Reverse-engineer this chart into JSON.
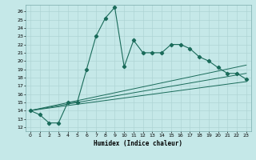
{
  "xlabel": "Humidex (Indice chaleur)",
  "bg_color": "#c5e8e8",
  "line_color": "#1a6b5a",
  "grid_color": "#afd4d4",
  "xlim": [
    -0.5,
    23.5
  ],
  "ylim": [
    11.5,
    26.8
  ],
  "xticks": [
    0,
    1,
    2,
    3,
    4,
    5,
    6,
    7,
    8,
    9,
    10,
    11,
    12,
    13,
    14,
    15,
    16,
    17,
    18,
    19,
    20,
    21,
    22,
    23
  ],
  "yticks": [
    12,
    13,
    14,
    15,
    16,
    17,
    18,
    19,
    20,
    21,
    22,
    23,
    24,
    25,
    26
  ],
  "series1_x": [
    0,
    1,
    2,
    3,
    4,
    5,
    6,
    7,
    8,
    9,
    10,
    11,
    12,
    13,
    14,
    15,
    16,
    17,
    18,
    19,
    20,
    21,
    22,
    23
  ],
  "series1_y": [
    14,
    13.5,
    12.5,
    12.5,
    15,
    15,
    19.0,
    23.0,
    25.2,
    26.5,
    19.3,
    22.5,
    21.0,
    21.0,
    21.0,
    22.0,
    22.0,
    21.5,
    20.5,
    20.0,
    19.2,
    18.5,
    18.5,
    17.8
  ],
  "series2_x": [
    0,
    23
  ],
  "series2_y": [
    14.0,
    19.5
  ],
  "series3_x": [
    0,
    23
  ],
  "series3_y": [
    14.0,
    18.5
  ],
  "series4_x": [
    0,
    23
  ],
  "series4_y": [
    14.0,
    17.5
  ]
}
